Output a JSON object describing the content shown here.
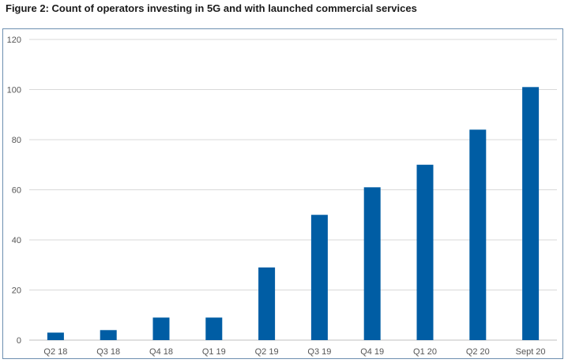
{
  "figure": {
    "title": "Figure 2: Count of operators investing in 5G and with launched commercial services"
  },
  "chart_data": {
    "type": "bar",
    "title": "",
    "xlabel": "",
    "ylabel": "",
    "categories": [
      "Q2 18",
      "Q3 18",
      "Q4 18",
      "Q1 19",
      "Q2 19",
      "Q3 19",
      "Q4 19",
      "Q1 20",
      "Q2 20",
      "Sept 20"
    ],
    "values": [
      3,
      4,
      9,
      9,
      29,
      50,
      61,
      70,
      84,
      101
    ],
    "ylim": [
      0,
      120
    ],
    "yticks": [
      0,
      20,
      40,
      60,
      80,
      100,
      120
    ],
    "grid": true,
    "legend": "none",
    "colors": {
      "bar": "#005DA4",
      "grid": "#d9d9d9",
      "frame": "#6d8fb0"
    }
  }
}
